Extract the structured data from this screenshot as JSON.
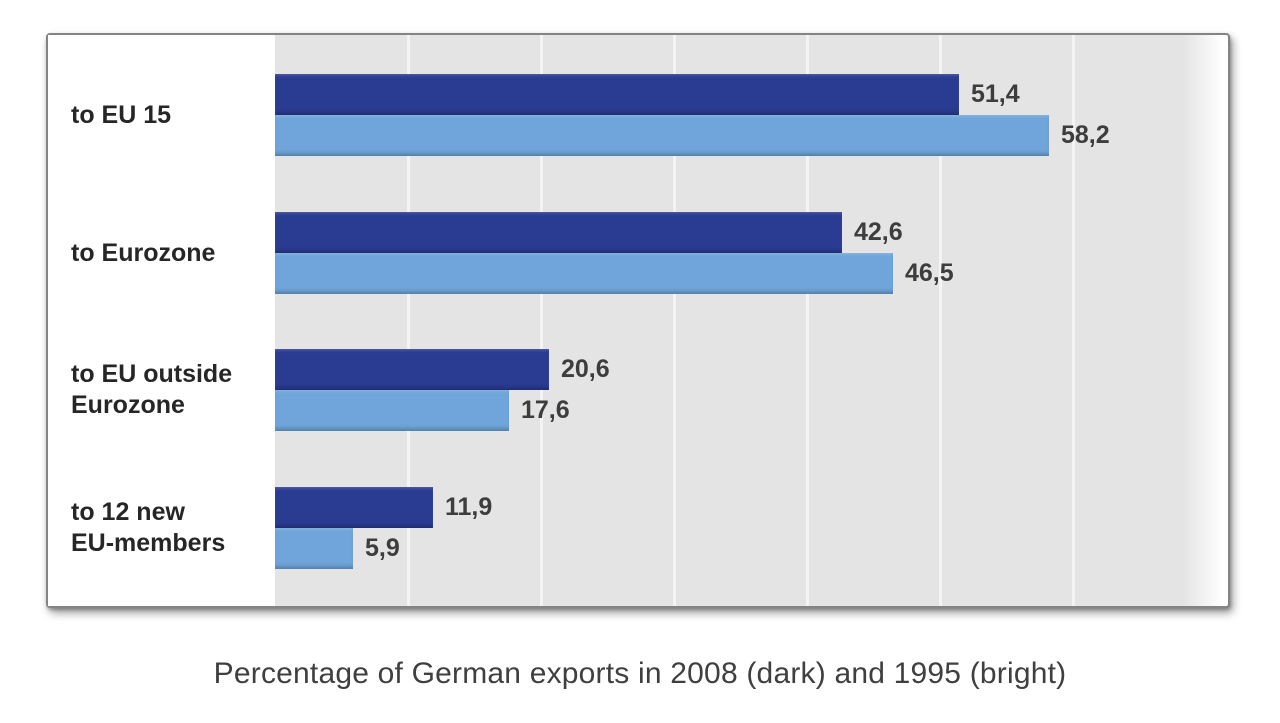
{
  "caption": "Percentage of German exports in 2008 (dark) and 1995 (bright)",
  "chart_data": {
    "type": "bar",
    "orientation": "horizontal",
    "title": "",
    "xlabel": "",
    "ylabel": "",
    "xlim": [
      0,
      70
    ],
    "gridline_interval": 10,
    "grid": true,
    "legend_position": "none",
    "plot_background": "#e4e4e4",
    "categories": [
      "to EU 15",
      "to Eurozone",
      "to EU outside\nEurozone",
      "to 12 new\nEU-members"
    ],
    "series": [
      {
        "name": "2008 (dark)",
        "color": "#2a3b92",
        "values": [
          51.4,
          42.6,
          20.6,
          11.9
        ],
        "value_labels": [
          "51,4",
          "42,6",
          "20,6",
          "11,9"
        ]
      },
      {
        "name": "1995 (bright)",
        "color": "#6fa5da",
        "values": [
          58.2,
          46.5,
          17.6,
          5.9
        ],
        "value_labels": [
          "58,2",
          "46,5",
          "17,6",
          "5,9"
        ]
      }
    ]
  }
}
